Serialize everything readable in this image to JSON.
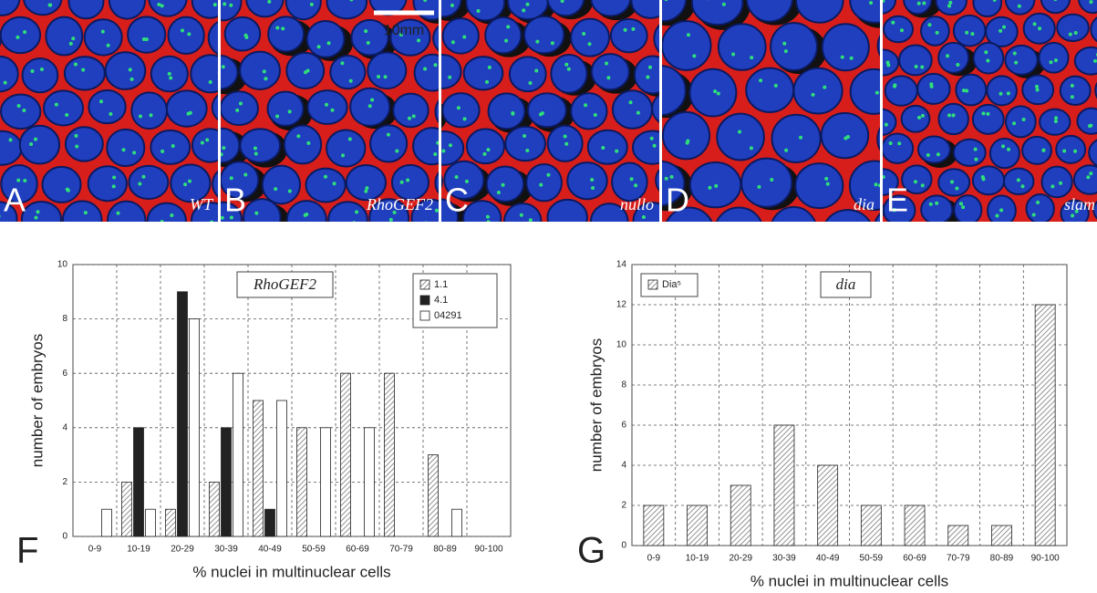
{
  "image_panels": [
    {
      "letter": "A",
      "label": "WT"
    },
    {
      "letter": "B",
      "label": "RhoGEF2"
    },
    {
      "letter": "C",
      "label": "nullo"
    },
    {
      "letter": "D",
      "label": "dia"
    },
    {
      "letter": "E",
      "label": "slam"
    }
  ],
  "scale_bar": "10mm",
  "chart_data": [
    {
      "type": "bar",
      "panel_letter": "F",
      "title": "RhoGEF2",
      "x_label": "% nuclei in multinuclear cells",
      "y_label": "number of embryos",
      "categories": [
        "0-9",
        "10-19",
        "20-29",
        "30-39",
        "40-49",
        "50-59",
        "60-69",
        "70-79",
        "80-89",
        "90-100"
      ],
      "series": [
        {
          "name": "1.1",
          "color": "#777777",
          "hatch": true,
          "values": [
            0,
            2,
            1,
            2,
            5,
            4,
            6,
            6,
            3,
            0
          ]
        },
        {
          "name": "4.1",
          "color": "#222222",
          "hatch": false,
          "values": [
            0,
            4,
            9,
            4,
            1,
            0,
            0,
            0,
            0,
            0
          ]
        },
        {
          "name": "04291",
          "color": "#ffffff",
          "hatch": false,
          "values": [
            1,
            1,
            8,
            6,
            5,
            4,
            4,
            0,
            1,
            0
          ]
        }
      ],
      "ylim": [
        0,
        10
      ],
      "yticks": [
        0,
        2,
        4,
        6,
        8,
        10
      ],
      "grid": true
    },
    {
      "type": "bar",
      "panel_letter": "G",
      "title": "dia",
      "x_label": "% nuclei in multinuclear cells",
      "y_label": "number of embryos",
      "categories": [
        "0-9",
        "10-19",
        "20-29",
        "30-39",
        "40-49",
        "50-59",
        "60-69",
        "70-79",
        "80-89",
        "90-100"
      ],
      "series": [
        {
          "name": "Dia⁵",
          "color": "#777777",
          "hatch": true,
          "values": [
            2,
            2,
            3,
            6,
            4,
            2,
            2,
            1,
            1,
            12
          ]
        }
      ],
      "ylim": [
        0,
        14
      ],
      "yticks": [
        0,
        2,
        4,
        6,
        8,
        10,
        12,
        14
      ],
      "grid": true
    }
  ]
}
